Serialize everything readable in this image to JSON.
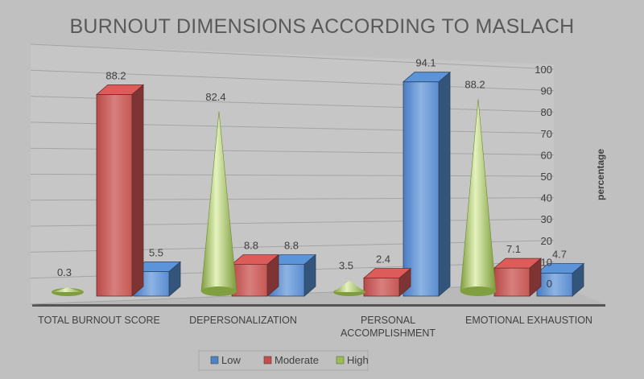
{
  "chart_data": {
    "type": "bar",
    "title": "BURNOUT DIMENSIONS ACCORDING TO MASLACH",
    "xlabel": "",
    "ylabel": "percentage",
    "ylim": [
      0,
      100
    ],
    "yticks": [
      "0",
      "10",
      "20",
      "30",
      "40",
      "50",
      "60",
      "70",
      "80",
      "90",
      "100"
    ],
    "categories": [
      "TOTAL BURNOUT SCORE",
      "DEPERSONALIZATION",
      "PERSONAL ACCOMPLISHMENT",
      "EMOTIONAL EXHAUSTION"
    ],
    "series": [
      {
        "name": "Low",
        "color": "#4f81bd",
        "shape": "box",
        "values": [
          5.5,
          8.8,
          94.1,
          4.7
        ]
      },
      {
        "name": "Moderate",
        "color": "#c0504d",
        "shape": "box",
        "values": [
          88.2,
          8.8,
          2.4,
          7.1
        ]
      },
      {
        "name": "High",
        "color": "#9bbb59",
        "shape": "cone",
        "values": [
          0.3,
          82.4,
          3.5,
          88.2
        ]
      }
    ],
    "data_labels": true,
    "legend_position": "bottom",
    "grid": true
  }
}
